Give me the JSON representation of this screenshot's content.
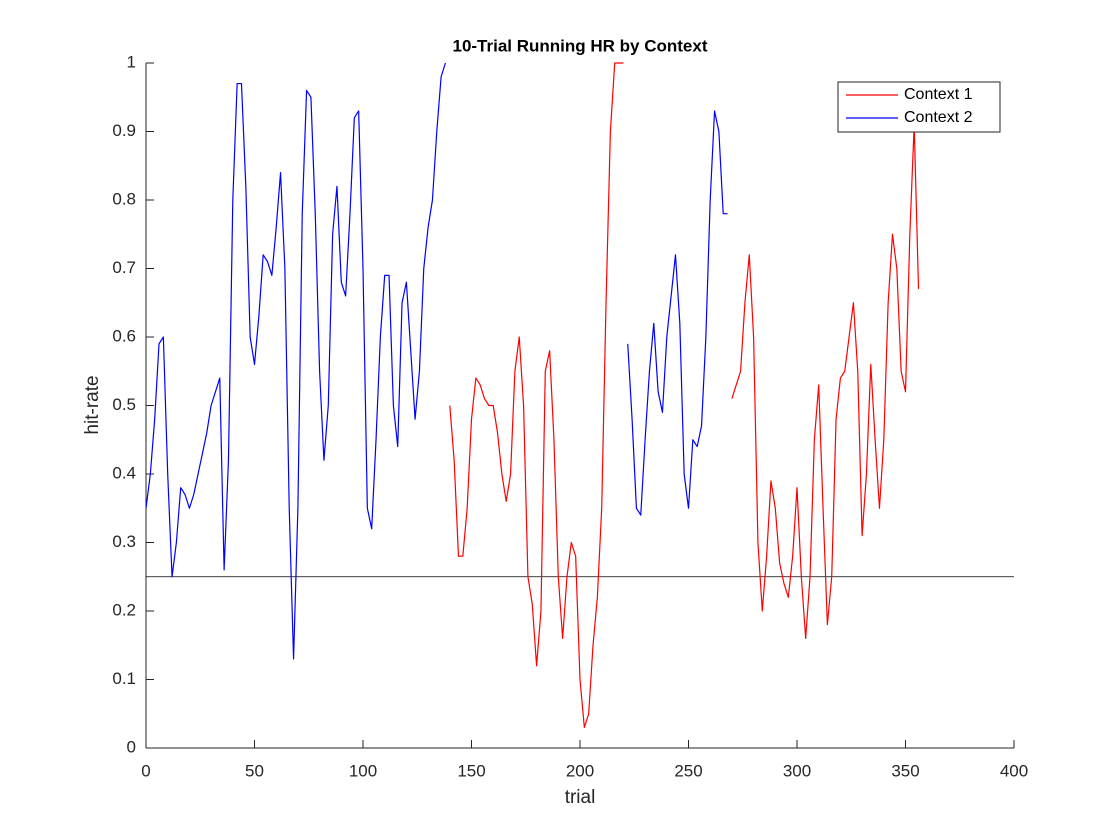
{
  "chart_data": {
    "type": "line",
    "title": "10-Trial Running HR by Context",
    "x_label": "trial",
    "y_label": "hit-rate",
    "x": [
      0,
      2,
      4,
      6,
      8,
      10,
      12,
      14,
      16,
      18,
      20,
      22,
      24,
      26,
      28,
      30,
      32,
      34,
      36,
      38,
      40,
      42,
      44,
      46,
      48,
      50,
      52,
      54,
      56,
      58,
      60,
      62,
      64,
      66,
      68,
      70,
      72,
      74,
      76,
      78,
      80,
      82,
      84,
      86,
      88,
      90,
      92,
      94,
      96,
      98,
      100,
      102,
      104,
      106,
      108,
      110,
      112,
      114,
      116,
      118,
      120,
      122,
      124,
      126,
      128,
      130,
      132,
      134,
      136,
      138,
      140,
      142,
      144,
      146,
      148,
      150,
      152,
      154,
      156,
      158,
      160,
      162,
      164,
      166,
      168,
      170,
      172,
      174,
      176,
      178,
      180,
      182,
      184,
      186,
      188,
      190,
      192,
      194,
      196,
      198,
      200,
      202,
      204,
      206,
      208,
      210,
      212,
      214,
      216,
      218,
      220,
      222,
      224,
      226,
      228,
      230,
      232,
      234,
      236,
      238,
      240,
      242,
      244,
      246,
      248,
      250,
      252,
      254,
      256,
      258,
      260,
      262,
      264,
      266,
      268,
      270,
      272,
      274,
      276,
      278,
      280,
      282,
      284,
      286,
      288,
      290,
      292,
      294,
      296,
      298,
      300,
      302,
      304,
      306,
      308,
      310,
      312,
      314,
      316,
      318,
      320,
      322,
      324,
      326,
      328,
      330,
      332,
      334,
      336,
      338,
      340,
      342,
      344,
      346,
      348,
      350,
      352,
      354,
      356
    ],
    "series": [
      {
        "name": "Context 1",
        "color": "#ff0000",
        "values": [
          null,
          null,
          null,
          null,
          null,
          null,
          null,
          null,
          null,
          null,
          null,
          null,
          null,
          null,
          null,
          null,
          null,
          null,
          null,
          null,
          null,
          null,
          null,
          null,
          null,
          null,
          null,
          null,
          null,
          null,
          null,
          null,
          null,
          null,
          null,
          null,
          null,
          null,
          null,
          null,
          null,
          null,
          null,
          null,
          null,
          null,
          null,
          null,
          null,
          null,
          null,
          null,
          null,
          null,
          null,
          null,
          null,
          null,
          null,
          null,
          null,
          null,
          null,
          null,
          null,
          null,
          null,
          null,
          null,
          null,
          0.5,
          0.42,
          0.28,
          0.28,
          0.35,
          0.48,
          0.54,
          0.53,
          0.51,
          0.5,
          0.5,
          0.46,
          0.4,
          0.36,
          0.4,
          0.55,
          0.6,
          0.5,
          0.25,
          0.21,
          0.12,
          0.2,
          0.55,
          0.58,
          0.45,
          0.25,
          0.16,
          0.25,
          0.3,
          0.28,
          0.1,
          0.03,
          0.05,
          0.15,
          0.22,
          0.35,
          0.65,
          0.9,
          1.0,
          1.0,
          1.0,
          null,
          null,
          null,
          null,
          null,
          null,
          null,
          null,
          null,
          null,
          null,
          null,
          null,
          null,
          null,
          null,
          null,
          null,
          null,
          null,
          null,
          null,
          null,
          null,
          0.51,
          0.53,
          0.55,
          0.65,
          0.72,
          0.6,
          0.3,
          0.2,
          0.28,
          0.39,
          0.35,
          0.27,
          0.24,
          0.22,
          0.28,
          0.38,
          0.25,
          0.16,
          0.25,
          0.45,
          0.53,
          0.35,
          0.18,
          0.25,
          0.48,
          0.54,
          0.55,
          0.6,
          0.65,
          0.55,
          0.31,
          0.4,
          0.56,
          0.45,
          0.35,
          0.45,
          0.65,
          0.75,
          0.7,
          0.55,
          0.52,
          0.75,
          0.91,
          0.67
        ]
      },
      {
        "name": "Context 2",
        "color": "#0000ff",
        "values": [
          0.35,
          0.4,
          0.48,
          0.59,
          0.6,
          0.4,
          0.25,
          0.3,
          0.38,
          0.37,
          0.35,
          0.37,
          0.4,
          0.43,
          0.46,
          0.5,
          0.52,
          0.54,
          0.26,
          0.42,
          0.8,
          0.97,
          0.97,
          0.82,
          0.6,
          0.56,
          0.63,
          0.72,
          0.71,
          0.69,
          0.76,
          0.84,
          0.7,
          0.35,
          0.13,
          0.35,
          0.78,
          0.96,
          0.95,
          0.78,
          0.55,
          0.42,
          0.5,
          0.75,
          0.82,
          0.68,
          0.66,
          0.78,
          0.92,
          0.93,
          0.7,
          0.35,
          0.32,
          0.45,
          0.6,
          0.69,
          0.69,
          0.5,
          0.44,
          0.65,
          0.68,
          0.58,
          0.48,
          0.55,
          0.7,
          0.76,
          0.8,
          0.9,
          0.98,
          1.0,
          null,
          null,
          null,
          null,
          null,
          null,
          null,
          null,
          null,
          null,
          null,
          null,
          null,
          null,
          null,
          null,
          null,
          null,
          null,
          null,
          null,
          null,
          null,
          null,
          null,
          null,
          null,
          null,
          null,
          null,
          null,
          null,
          null,
          null,
          null,
          null,
          null,
          null,
          null,
          null,
          null,
          0.59,
          0.48,
          0.35,
          0.34,
          0.45,
          0.55,
          0.62,
          0.52,
          0.49,
          0.6,
          0.66,
          0.72,
          0.62,
          0.4,
          0.35,
          0.45,
          0.44,
          0.47,
          0.6,
          0.8,
          0.93,
          0.9,
          0.78,
          0.78,
          null,
          null,
          null,
          null,
          null,
          null,
          null,
          null,
          null,
          null,
          null,
          null,
          null,
          null,
          null,
          null,
          null,
          null,
          null,
          null,
          null,
          null,
          null,
          null,
          null,
          null,
          null,
          null,
          null,
          null,
          null,
          null,
          null,
          null,
          null,
          null,
          null,
          null,
          null,
          null,
          null,
          null,
          null,
          null
        ]
      }
    ],
    "reference_line": 0.25,
    "xlim": [
      0,
      400
    ],
    "xticks": [
      0,
      50,
      100,
      150,
      200,
      250,
      300,
      350,
      400
    ],
    "ylim": [
      0,
      1
    ],
    "yticks": [
      0,
      0.1,
      0.2,
      0.3,
      0.4,
      0.5,
      0.6,
      0.7,
      0.8,
      0.9,
      1
    ],
    "legend": "upper right"
  }
}
